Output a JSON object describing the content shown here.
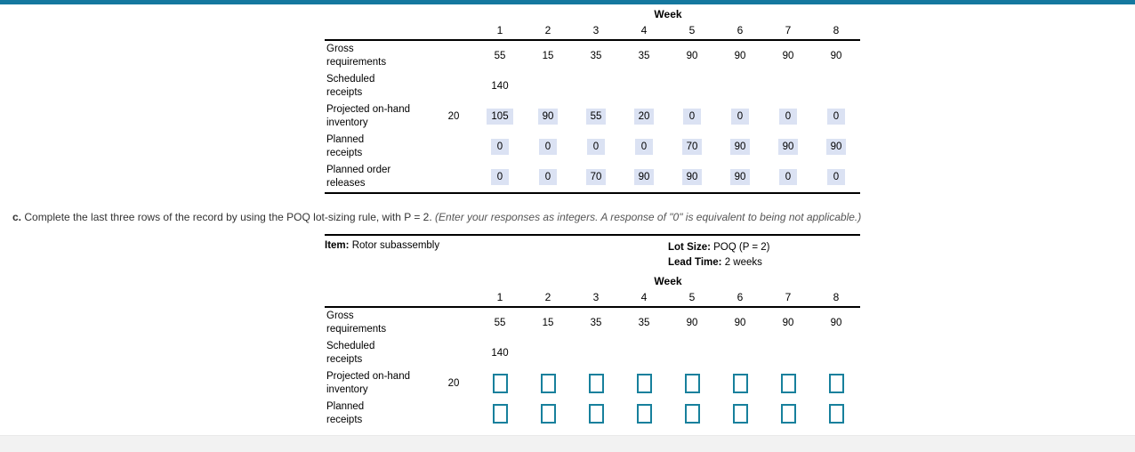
{
  "accent": {
    "top_bar_color": "#15789f",
    "input_border_color": "#17809c",
    "answer_highlight_bg": "#dbe2f3",
    "footer_bar_bg": "#f2f2f2"
  },
  "instruction": {
    "prefix": "c.",
    "body": " Complete the last three rows of the record by using the POQ lot-sizing rule, with P = 2. ",
    "note": "(Enter your responses as integers. A response of \"0\" is equivalent to being not applicable.)"
  },
  "table1": {
    "week_label": "Week",
    "weeks": [
      "1",
      "2",
      "3",
      "4",
      "5",
      "6",
      "7",
      "8"
    ],
    "rows": [
      {
        "label": "Gross\nrequirements",
        "initial": "",
        "values": [
          "55",
          "15",
          "35",
          "35",
          "90",
          "90",
          "90",
          "90"
        ]
      },
      {
        "label": "Scheduled\nreceipts",
        "initial": "",
        "values": [
          "140",
          "",
          "",
          "",
          "",
          "",
          "",
          ""
        ]
      },
      {
        "label": "Projected on-hand\ninventory",
        "initial": "20",
        "values": [
          "105",
          "90",
          "55",
          "20",
          "0",
          "0",
          "0",
          "0"
        ]
      },
      {
        "label": "Planned\nreceipts",
        "initial": "",
        "values": [
          "0",
          "0",
          "0",
          "0",
          "70",
          "90",
          "90",
          "90"
        ]
      },
      {
        "label": "Planned order\nreleases",
        "initial": "",
        "values": [
          "0",
          "0",
          "70",
          "90",
          "90",
          "90",
          "0",
          "0"
        ]
      }
    ]
  },
  "table2": {
    "item_label": "Item:",
    "item_value": "Rotor subassembly",
    "lot_size_label": "Lot Size:",
    "lot_size_value": "POQ (P = 2)",
    "lead_time_label": "Lead Time:",
    "lead_time_value": "2 weeks",
    "week_label": "Week",
    "weeks": [
      "1",
      "2",
      "3",
      "4",
      "5",
      "6",
      "7",
      "8"
    ],
    "rows": [
      {
        "label": "Gross\nrequirements",
        "initial": "",
        "values": [
          "55",
          "15",
          "35",
          "35",
          "90",
          "90",
          "90",
          "90"
        ]
      },
      {
        "label": "Scheduled\nreceipts",
        "initial": "",
        "values": [
          "140",
          "",
          "",
          "",
          "",
          "",
          "",
          ""
        ]
      },
      {
        "label": "Projected on-hand\ninventory",
        "initial": "20",
        "input_values": [
          "",
          "",
          "",
          "",
          "",
          "",
          "",
          ""
        ]
      },
      {
        "label": "Planned\nreceipts",
        "initial": "",
        "input_values": [
          "",
          "",
          "",
          "",
          "",
          "",
          "",
          ""
        ]
      }
    ]
  }
}
